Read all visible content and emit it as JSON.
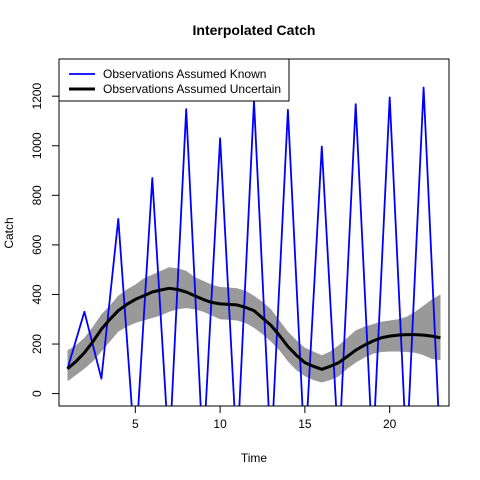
{
  "chart_data": {
    "type": "line",
    "title": "Interpolated Catch",
    "xlabel": "Time",
    "ylabel": "Catch",
    "xlim": [
      0.5,
      23.5
    ],
    "ylim": [
      -50,
      1350
    ],
    "xticks": [
      5,
      10,
      15,
      20
    ],
    "yticks": [
      0,
      200,
      400,
      600,
      800,
      1000,
      1200
    ],
    "legend_position": "top-left",
    "grid": false,
    "colors": {
      "known": "#0000ff",
      "uncertain": "#000000",
      "band": "#999999"
    },
    "series": [
      {
        "name": "Observations Assumed Known",
        "x": [
          1,
          2,
          3,
          4,
          5,
          6,
          7,
          8,
          9,
          10,
          11,
          12,
          13,
          14,
          15,
          16,
          17,
          18,
          19,
          20,
          21,
          22,
          23
        ],
        "y": [
          100,
          330,
          60,
          705,
          -250,
          870,
          -250,
          1148,
          -250,
          1030,
          -250,
          1180,
          -250,
          1145,
          -250,
          997,
          -250,
          1168,
          -250,
          1195,
          -250,
          1235,
          -250
        ]
      },
      {
        "name": "Observations Assumed Uncertain",
        "x": [
          1,
          1.5,
          2,
          2.5,
          3,
          3.5,
          4,
          4.5,
          5,
          5.5,
          6,
          6.5,
          7,
          7.5,
          8,
          8.5,
          9,
          9.5,
          10,
          10.5,
          11,
          11.5,
          12,
          12.5,
          13,
          13.5,
          14,
          14.5,
          15,
          15.5,
          16,
          16.5,
          17,
          17.5,
          18,
          18.5,
          19,
          19.5,
          20,
          20.5,
          21,
          21.5,
          22,
          22.5,
          23
        ],
        "y": [
          100,
          130,
          165,
          210,
          260,
          300,
          335,
          360,
          380,
          395,
          410,
          418,
          425,
          420,
          410,
          395,
          380,
          368,
          362,
          360,
          358,
          348,
          335,
          305,
          275,
          235,
          190,
          155,
          125,
          110,
          98,
          110,
          125,
          150,
          175,
          195,
          212,
          225,
          232,
          236,
          238,
          238,
          236,
          232,
          225
        ],
        "lower": [
          50,
          75,
          100,
          130,
          170,
          210,
          250,
          270,
          285,
          295,
          305,
          315,
          330,
          340,
          345,
          340,
          330,
          315,
          300,
          298,
          295,
          285,
          265,
          240,
          210,
          175,
          130,
          95,
          70,
          55,
          45,
          55,
          70,
          100,
          125,
          145,
          160,
          168,
          170,
          170,
          168,
          165,
          155,
          140,
          135
        ],
        "upper": [
          175,
          195,
          225,
          270,
          320,
          355,
          395,
          420,
          440,
          465,
          480,
          495,
          510,
          505,
          495,
          470,
          455,
          440,
          430,
          428,
          425,
          415,
          395,
          370,
          340,
          295,
          250,
          215,
          185,
          170,
          155,
          170,
          195,
          225,
          255,
          270,
          280,
          290,
          295,
          300,
          310,
          330,
          355,
          380,
          400
        ]
      }
    ]
  }
}
